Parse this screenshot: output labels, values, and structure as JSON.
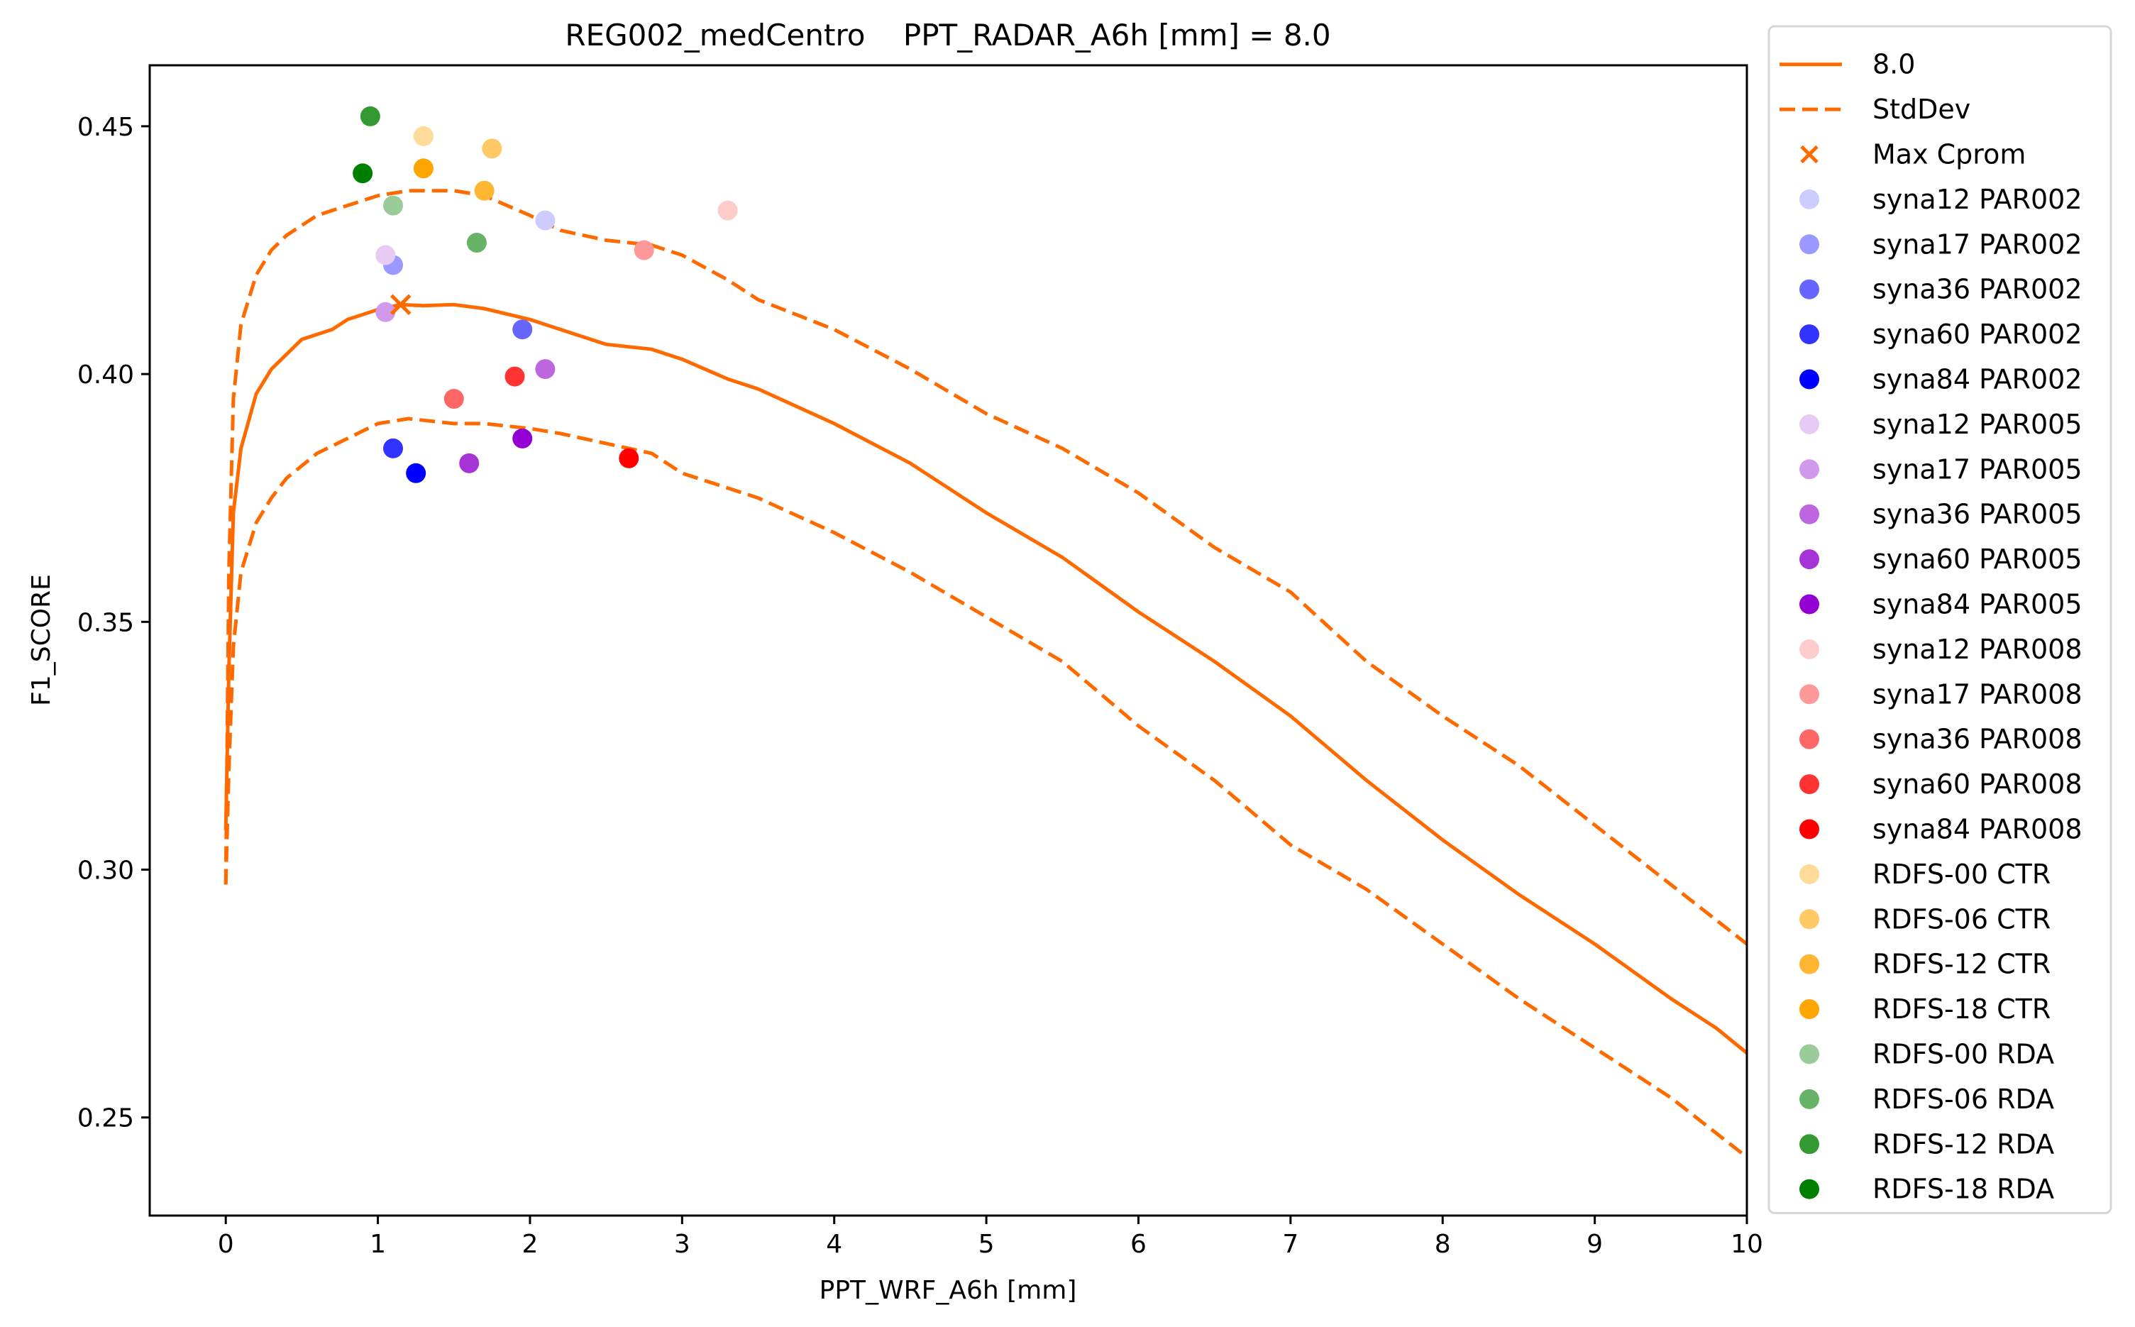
{
  "chart_data": {
    "type": "line",
    "title": "REG002_medCentro    PPT_RADAR_A6h [mm] = 8.0",
    "xlabel": "PPT_WRF_A6h [mm]",
    "ylabel": "F1_SCORE",
    "xlim": [
      -0.5,
      10
    ],
    "ylim": [
      0.2302,
      0.4623
    ],
    "xticks": [
      0,
      1,
      2,
      3,
      4,
      5,
      6,
      7,
      8,
      9,
      10
    ],
    "xtick_labels": [
      "0",
      "1",
      "2",
      "3",
      "4",
      "5",
      "6",
      "7",
      "8",
      "9",
      "10"
    ],
    "yticks": [
      0.25,
      0.3,
      0.35,
      0.4,
      0.45
    ],
    "ytick_labels": [
      "0.25",
      "0.30",
      "0.35",
      "0.40",
      "0.45"
    ],
    "grid": false,
    "legend_position": "outside-right",
    "line_color": "#ff6a00",
    "series": [
      {
        "name": "8.0",
        "style": "solid",
        "color": "#ff6a00",
        "x": [
          0,
          0.02,
          0.05,
          0.1,
          0.2,
          0.3,
          0.4,
          0.5,
          0.6,
          0.7,
          0.8,
          1.0,
          1.15,
          1.3,
          1.5,
          1.7,
          2.0,
          2.2,
          2.5,
          2.8,
          3.0,
          3.3,
          3.5,
          4.0,
          4.5,
          5.0,
          5.5,
          6.0,
          6.5,
          7.0,
          7.5,
          8.0,
          8.5,
          9.0,
          9.5,
          9.8,
          10.0
        ],
        "y": [
          0.308,
          0.34,
          0.372,
          0.385,
          0.396,
          0.401,
          0.404,
          0.407,
          0.408,
          0.409,
          0.411,
          0.413,
          0.414,
          0.4138,
          0.414,
          0.4132,
          0.411,
          0.409,
          0.406,
          0.405,
          0.403,
          0.399,
          0.397,
          0.39,
          0.382,
          0.372,
          0.363,
          0.352,
          0.342,
          0.331,
          0.318,
          0.306,
          0.295,
          0.285,
          0.274,
          0.268,
          0.263
        ]
      },
      {
        "name": "StdDev",
        "style": "dashed",
        "color": "#ff6a00",
        "bound": "upper",
        "x": [
          0,
          0.02,
          0.05,
          0.1,
          0.2,
          0.3,
          0.4,
          0.5,
          0.6,
          0.8,
          1.0,
          1.2,
          1.5,
          1.7,
          2.0,
          2.2,
          2.5,
          2.8,
          3.0,
          3.3,
          3.5,
          4.0,
          4.5,
          5.0,
          5.5,
          6.0,
          6.5,
          7.0,
          7.5,
          8.0,
          8.5,
          9.0,
          9.5,
          10.0
        ],
        "y": [
          0.297,
          0.36,
          0.395,
          0.41,
          0.42,
          0.425,
          0.428,
          0.43,
          0.432,
          0.434,
          0.436,
          0.437,
          0.437,
          0.436,
          0.432,
          0.429,
          0.427,
          0.426,
          0.424,
          0.419,
          0.415,
          0.409,
          0.401,
          0.392,
          0.385,
          0.376,
          0.365,
          0.356,
          0.342,
          0.331,
          0.321,
          0.309,
          0.297,
          0.285
        ]
      },
      {
        "name": "StdDev lower",
        "style": "dashed",
        "color": "#ff6a00",
        "bound": "lower",
        "x": [
          0,
          0.02,
          0.05,
          0.1,
          0.2,
          0.3,
          0.4,
          0.6,
          0.8,
          1.0,
          1.2,
          1.5,
          1.7,
          2.0,
          2.2,
          2.5,
          2.8,
          3.0,
          3.3,
          3.5,
          4.0,
          4.5,
          5.0,
          5.5,
          6.0,
          6.5,
          7.0,
          7.5,
          8.0,
          8.5,
          9.0,
          9.5,
          10.0
        ],
        "y": [
          0.297,
          0.32,
          0.345,
          0.36,
          0.37,
          0.375,
          0.379,
          0.384,
          0.387,
          0.39,
          0.391,
          0.39,
          0.39,
          0.389,
          0.388,
          0.386,
          0.384,
          0.38,
          0.377,
          0.375,
          0.368,
          0.36,
          0.351,
          0.342,
          0.329,
          0.318,
          0.305,
          0.296,
          0.285,
          0.274,
          0.264,
          0.254,
          0.242
        ]
      }
    ],
    "max_point": {
      "name": "Max Cprom",
      "x": 1.15,
      "y": 0.414,
      "color": "#ff6a00"
    },
    "scatter": [
      {
        "name": "syna12 PAR002",
        "color": "#ccccff",
        "x": 2.1,
        "y": 0.431
      },
      {
        "name": "syna17 PAR002",
        "color": "#9999ff",
        "x": 1.1,
        "y": 0.422
      },
      {
        "name": "syna36 PAR002",
        "color": "#6666ff",
        "x": 1.95,
        "y": 0.409
      },
      {
        "name": "syna60 PAR002",
        "color": "#3333ff",
        "x": 1.1,
        "y": 0.385
      },
      {
        "name": "syna84 PAR002",
        "color": "#0000ff",
        "x": 1.25,
        "y": 0.38
      },
      {
        "name": "syna12 PAR005",
        "color": "#e6ccf5",
        "x": 1.05,
        "y": 0.424
      },
      {
        "name": "syna17 PAR005",
        "color": "#d199eb",
        "x": 1.05,
        "y": 0.4125
      },
      {
        "name": "syna36 PAR005",
        "color": "#bd66e0",
        "x": 2.1,
        "y": 0.401
      },
      {
        "name": "syna60 PAR005",
        "color": "#a633d6",
        "x": 1.6,
        "y": 0.382
      },
      {
        "name": "syna84 PAR005",
        "color": "#9400d3",
        "x": 1.95,
        "y": 0.387
      },
      {
        "name": "syna12 PAR008",
        "color": "#ffcccc",
        "x": 3.3,
        "y": 0.433
      },
      {
        "name": "syna17 PAR008",
        "color": "#ff9999",
        "x": 2.75,
        "y": 0.425
      },
      {
        "name": "syna36 PAR008",
        "color": "#ff6666",
        "x": 1.5,
        "y": 0.395
      },
      {
        "name": "syna60 PAR008",
        "color": "#ff3333",
        "x": 1.9,
        "y": 0.3995
      },
      {
        "name": "syna84 PAR008",
        "color": "#ff0000",
        "x": 2.65,
        "y": 0.383
      },
      {
        "name": "RDFS-00 CTR",
        "color": "#ffdb99",
        "x": 1.3,
        "y": 0.448
      },
      {
        "name": "RDFS-06 CTR",
        "color": "#ffc966",
        "x": 1.75,
        "y": 0.4455
      },
      {
        "name": "RDFS-12 CTR",
        "color": "#ffb733",
        "x": 1.7,
        "y": 0.437
      },
      {
        "name": "RDFS-18 CTR",
        "color": "#ffa500",
        "x": 1.3,
        "y": 0.4415
      },
      {
        "name": "RDFS-00 RDA",
        "color": "#99cc99",
        "x": 1.1,
        "y": 0.434
      },
      {
        "name": "RDFS-06 RDA",
        "color": "#66b266",
        "x": 1.65,
        "y": 0.4265
      },
      {
        "name": "RDFS-12 RDA",
        "color": "#339933",
        "x": 0.95,
        "y": 0.452
      },
      {
        "name": "RDFS-18 RDA",
        "color": "#008000",
        "x": 0.9,
        "y": 0.4405
      }
    ],
    "legend": [
      {
        "label": "8.0",
        "marker": "line-solid"
      },
      {
        "label": "StdDev",
        "marker": "line-dashed"
      },
      {
        "label": "Max Cprom",
        "marker": "x"
      },
      {
        "label": "syna12 PAR002",
        "marker": "dot"
      },
      {
        "label": "syna17 PAR002",
        "marker": "dot"
      },
      {
        "label": "syna36 PAR002",
        "marker": "dot"
      },
      {
        "label": "syna60 PAR002",
        "marker": "dot"
      },
      {
        "label": "syna84 PAR002",
        "marker": "dot"
      },
      {
        "label": "syna12 PAR005",
        "marker": "dot"
      },
      {
        "label": "syna17 PAR005",
        "marker": "dot"
      },
      {
        "label": "syna36 PAR005",
        "marker": "dot"
      },
      {
        "label": "syna60 PAR005",
        "marker": "dot"
      },
      {
        "label": "syna84 PAR005",
        "marker": "dot"
      },
      {
        "label": "syna12 PAR008",
        "marker": "dot"
      },
      {
        "label": "syna17 PAR008",
        "marker": "dot"
      },
      {
        "label": "syna36 PAR008",
        "marker": "dot"
      },
      {
        "label": "syna60 PAR008",
        "marker": "dot"
      },
      {
        "label": "syna84 PAR008",
        "marker": "dot"
      },
      {
        "label": " RDFS-00 CTR",
        "marker": "dot"
      },
      {
        "label": " RDFS-06 CTR",
        "marker": "dot"
      },
      {
        "label": " RDFS-12 CTR",
        "marker": "dot"
      },
      {
        "label": " RDFS-18 CTR",
        "marker": "dot"
      },
      {
        "label": " RDFS-00 RDA",
        "marker": "dot"
      },
      {
        "label": " RDFS-06 RDA",
        "marker": "dot"
      },
      {
        "label": " RDFS-12 RDA",
        "marker": "dot"
      },
      {
        "label": " RDFS-18 RDA",
        "marker": "dot"
      }
    ]
  }
}
